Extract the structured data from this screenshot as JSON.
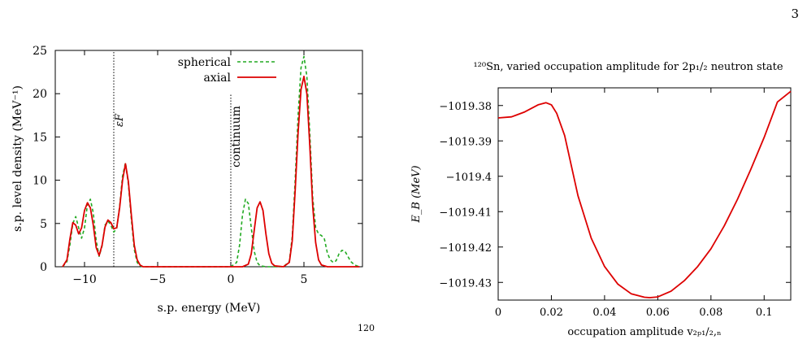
{
  "page": {
    "page_number": "3",
    "caption_fragment": "120"
  },
  "colors": {
    "spherical": "#22aa22",
    "axial": "#dd0000",
    "axis": "#000000"
  },
  "chart_data": [
    {
      "type": "line",
      "title": "",
      "xlabel": "s.p. energy (MeV)",
      "ylabel": "s.p. level density (MeV⁻¹)",
      "xlim": [
        -12,
        9
      ],
      "ylim": [
        0,
        25
      ],
      "xticks": [
        -10,
        -5,
        0,
        5
      ],
      "xtick_labels": [
        "−10",
        "−5",
        "0",
        "5"
      ],
      "yticks": [
        0,
        5,
        10,
        15,
        20,
        25
      ],
      "ytick_labels": [
        "0",
        "5",
        "10",
        "15",
        "20",
        "25"
      ],
      "legend_position": "top-right",
      "annotations": [
        {
          "text": "εF",
          "x": -8.0,
          "kind": "vertical-dotted-line"
        },
        {
          "text": "continuum",
          "x": 0.0,
          "kind": "vertical-dotted-line",
          "y_top": 20
        }
      ],
      "series": [
        {
          "name": "spherical",
          "style": "dashed",
          "x": [
            -11.5,
            -11.2,
            -11.0,
            -10.8,
            -10.6,
            -10.4,
            -10.2,
            -10.0,
            -9.8,
            -9.6,
            -9.4,
            -9.2,
            -9.0,
            -8.8,
            -8.6,
            -8.4,
            -8.2,
            -8.0,
            -7.8,
            -7.6,
            -7.4,
            -7.2,
            -7.0,
            -6.8,
            -6.6,
            -6.4,
            -6.2,
            -6.0,
            -5.0,
            0.0,
            0.4,
            0.6,
            0.8,
            1.0,
            1.2,
            1.4,
            1.6,
            1.8,
            2.0,
            2.4,
            3.0,
            3.6,
            4.0,
            4.2,
            4.4,
            4.6,
            4.8,
            5.0,
            5.2,
            5.4,
            5.6,
            5.8,
            6.0,
            6.2,
            6.4,
            6.6,
            6.8,
            7.0,
            7.2,
            7.4,
            7.6,
            7.8,
            8.0,
            8.2,
            8.4,
            8.6,
            8.8
          ],
          "y": [
            0.0,
            0.6,
            2.5,
            5.0,
            5.8,
            4.5,
            3.3,
            4.5,
            7.2,
            7.8,
            6.2,
            3.0,
            1.2,
            2.4,
            4.8,
            5.3,
            4.8,
            4.0,
            4.4,
            7.0,
            10.5,
            12.0,
            9.5,
            5.5,
            2.0,
            0.5,
            0.1,
            0.0,
            0.0,
            0.0,
            0.5,
            2.5,
            6.0,
            7.8,
            7.3,
            4.5,
            1.8,
            0.5,
            0.1,
            0.0,
            0.0,
            0.0,
            0.6,
            3.5,
            10.0,
            17.5,
            23.0,
            24.3,
            22.0,
            15.5,
            8.0,
            4.5,
            3.8,
            3.6,
            3.2,
            1.6,
            0.8,
            0.5,
            0.7,
            1.5,
            1.9,
            1.8,
            1.2,
            0.6,
            0.3,
            0.1,
            0.0
          ]
        },
        {
          "name": "axial",
          "style": "solid",
          "x": [
            -11.5,
            -11.2,
            -11.0,
            -10.8,
            -10.6,
            -10.4,
            -10.2,
            -10.0,
            -9.8,
            -9.6,
            -9.4,
            -9.2,
            -9.0,
            -8.8,
            -8.6,
            -8.4,
            -8.2,
            -8.0,
            -7.8,
            -7.6,
            -7.4,
            -7.2,
            -7.0,
            -6.8,
            -6.6,
            -6.4,
            -6.2,
            -6.0,
            -5.0,
            0.0,
            0.8,
            1.2,
            1.4,
            1.6,
            1.8,
            2.0,
            2.2,
            2.4,
            2.6,
            2.8,
            3.0,
            3.6,
            4.0,
            4.2,
            4.4,
            4.6,
            4.8,
            5.0,
            5.2,
            5.4,
            5.6,
            5.8,
            6.0,
            6.2,
            6.4,
            6.6,
            6.8,
            7.0,
            7.5,
            8.0,
            8.8
          ],
          "y": [
            0.0,
            0.8,
            3.2,
            5.1,
            4.8,
            3.8,
            4.5,
            6.5,
            7.4,
            6.8,
            4.8,
            2.2,
            1.3,
            2.5,
            4.6,
            5.4,
            5.1,
            4.4,
            4.5,
            6.8,
            10.0,
            11.9,
            9.8,
            6.0,
            2.5,
            0.8,
            0.2,
            0.0,
            0.0,
            0.0,
            0.0,
            0.3,
            1.5,
            4.2,
            6.8,
            7.5,
            6.5,
            3.8,
            1.5,
            0.4,
            0.1,
            0.0,
            0.5,
            3.0,
            8.8,
            15.5,
            20.5,
            22.0,
            20.0,
            14.0,
            7.0,
            2.8,
            0.8,
            0.2,
            0.1,
            0.0,
            0.0,
            0.0,
            0.0,
            0.0,
            0.0
          ]
        }
      ]
    },
    {
      "type": "line",
      "title": "¹²⁰Sn, varied occupation amplitude for 2p₁/₂ neutron state",
      "xlabel": "occupation amplitude v₂ₚ₁/₂,ₙ",
      "ylabel": "E_B (MeV)",
      "xlim": [
        0,
        0.11
      ],
      "ylim": [
        -1019.435,
        -1019.375
      ],
      "xticks": [
        0,
        0.02,
        0.04,
        0.06,
        0.08,
        0.1
      ],
      "xtick_labels": [
        "0",
        "0.02",
        "0.04",
        "0.06",
        "0.08",
        "0.1"
      ],
      "yticks": [
        -1019.38,
        -1019.39,
        -1019.4,
        -1019.41,
        -1019.42,
        -1019.43
      ],
      "ytick_labels": [
        "−1019.38",
        "−1019.39",
        "−1019.4",
        "−1019.41",
        "−1019.42",
        "−1019.43"
      ],
      "series": [
        {
          "style": "solid",
          "x": [
            0,
            0.005,
            0.01,
            0.015,
            0.018,
            0.02,
            0.022,
            0.025,
            0.03,
            0.035,
            0.04,
            0.045,
            0.05,
            0.055,
            0.057,
            0.06,
            0.065,
            0.07,
            0.075,
            0.08,
            0.085,
            0.09,
            0.095,
            0.1,
            0.105,
            0.11
          ],
          "y": [
            -1019.3835,
            -1019.3832,
            -1019.3818,
            -1019.3798,
            -1019.3792,
            -1019.3798,
            -1019.3822,
            -1019.3885,
            -1019.4055,
            -1019.4175,
            -1019.4255,
            -1019.4305,
            -1019.4332,
            -1019.4342,
            -1019.4343,
            -1019.4341,
            -1019.4325,
            -1019.4295,
            -1019.4255,
            -1019.4205,
            -1019.414,
            -1019.4065,
            -1019.398,
            -1019.389,
            -1019.379,
            -1019.376
          ]
        }
      ]
    }
  ]
}
